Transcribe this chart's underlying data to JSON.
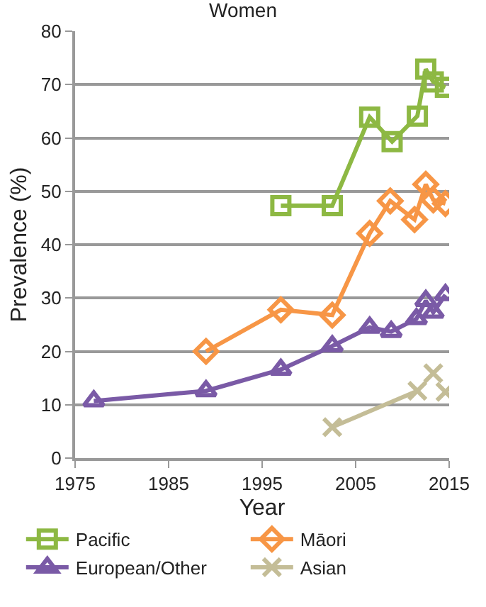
{
  "chart_data": {
    "type": "line",
    "title": "Women",
    "xlabel": "Year",
    "ylabel": "Prevalence (%)",
    "xlim": [
      1975,
      2015
    ],
    "xticks": [
      1975,
      1985,
      1995,
      2005,
      2015
    ],
    "ylim": [
      0,
      80
    ],
    "yticks": [
      0,
      10,
      20,
      30,
      40,
      50,
      60,
      70,
      80
    ],
    "grid": "y",
    "legend": "bottom",
    "line_style": "solid",
    "series": [
      {
        "name": "Pacific",
        "color": "#8db843",
        "marker": "square",
        "x": [
          1997,
          2002.5,
          2006.5,
          2008.9,
          2011.6,
          2012.5,
          2013.3,
          2014.6
        ],
        "values": [
          47.3,
          47.3,
          63.9,
          59.3,
          64.1,
          72.9,
          70.5,
          69.5
        ]
      },
      {
        "name": "Māori",
        "color": "#f79646",
        "marker": "diamond",
        "x": [
          1989,
          1997,
          2002.5,
          2006.5,
          2008.7,
          2011.3,
          2012.5,
          2013.3,
          2014.6
        ],
        "values": [
          20,
          27.8,
          26.8,
          42.1,
          48.2,
          44.7,
          51.3,
          48.4,
          47.7
        ]
      },
      {
        "name": "European/Other",
        "color": "#7a5aa6",
        "marker": "triangle",
        "x": [
          1977,
          1989,
          1997,
          2002.5,
          2006.5,
          2008.8,
          2011.5,
          2012.5,
          2013.3,
          2014.6
        ],
        "values": [
          10.7,
          12.6,
          16.6,
          21.0,
          24.5,
          23.7,
          26.1,
          29.5,
          27.3,
          30.6
        ]
      },
      {
        "name": "Asian",
        "color": "#c4bd97",
        "marker": "cross",
        "x": [
          2002.5,
          2011.6,
          2012.5,
          2013.3,
          2014,
          2014.6
        ],
        "values": [
          5.8,
          12.6,
          null,
          15.9,
          null,
          12.4
        ]
      }
    ]
  }
}
